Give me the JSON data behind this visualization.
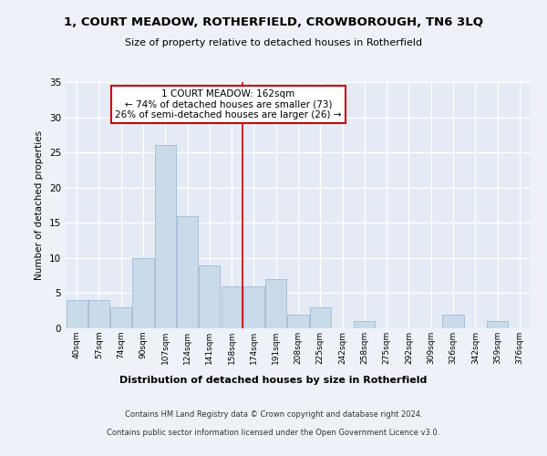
{
  "title": "1, COURT MEADOW, ROTHERFIELD, CROWBOROUGH, TN6 3LQ",
  "subtitle": "Size of property relative to detached houses in Rotherfield",
  "xlabel": "Distribution of detached houses by size in Rotherfield",
  "ylabel": "Number of detached properties",
  "bar_labels": [
    "40sqm",
    "57sqm",
    "74sqm",
    "90sqm",
    "107sqm",
    "124sqm",
    "141sqm",
    "158sqm",
    "174sqm",
    "191sqm",
    "208sqm",
    "225sqm",
    "242sqm",
    "258sqm",
    "275sqm",
    "292sqm",
    "309sqm",
    "326sqm",
    "342sqm",
    "359sqm",
    "376sqm"
  ],
  "bar_values": [
    4,
    4,
    3,
    10,
    26,
    16,
    9,
    6,
    6,
    7,
    2,
    3,
    0,
    1,
    0,
    0,
    0,
    2,
    0,
    1,
    0
  ],
  "bar_color": "#c9daea",
  "bar_edge_color": "#a8c0d8",
  "property_line_x": 7.5,
  "ylim": [
    0,
    35
  ],
  "yticks": [
    0,
    5,
    10,
    15,
    20,
    25,
    30,
    35
  ],
  "annotation_title": "1 COURT MEADOW: 162sqm",
  "annotation_line1": "← 74% of detached houses are smaller (73)",
  "annotation_line2": "26% of semi-detached houses are larger (26) →",
  "footer_line1": "Contains HM Land Registry data © Crown copyright and database right 2024.",
  "footer_line2": "Contains public sector information licensed under the Open Government Licence v3.0.",
  "background_color": "#eef2f8",
  "plot_bg_color": "#e4ebf5"
}
